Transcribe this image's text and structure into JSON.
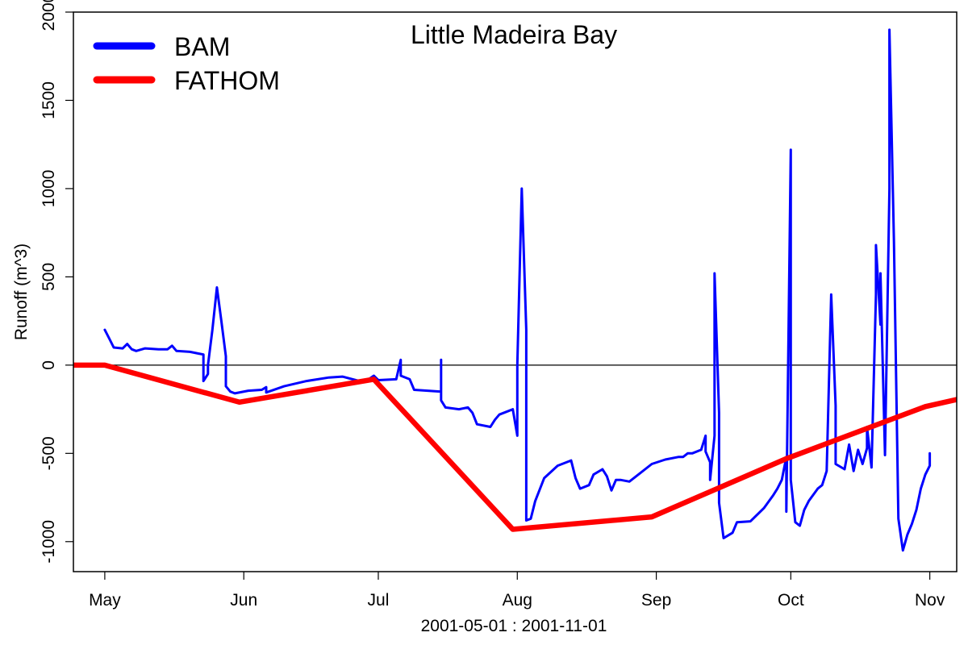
{
  "chart_data": {
    "type": "line",
    "title": "Little Madeira Bay",
    "xlabel": "2001-05-01 : 2001-11-01",
    "ylabel": "Runoff (m^3)",
    "xlim": [
      "2001-04-24",
      "2001-11-07"
    ],
    "ylim": [
      -1170,
      2000
    ],
    "x_ticks": [
      {
        "date": "2001-05-01",
        "label": "May"
      },
      {
        "date": "2001-06-01",
        "label": "Jun"
      },
      {
        "date": "2001-07-01",
        "label": "Jul"
      },
      {
        "date": "2001-08-01",
        "label": "Aug"
      },
      {
        "date": "2001-09-01",
        "label": "Sep"
      },
      {
        "date": "2001-10-01",
        "label": "Oct"
      },
      {
        "date": "2001-11-01",
        "label": "Nov"
      }
    ],
    "y_ticks": [
      -1000,
      -500,
      0,
      500,
      1000,
      1500,
      2000
    ],
    "y_tick_labels": [
      "-1000",
      "-500",
      "0",
      "500",
      "1000",
      "1500",
      "2000"
    ],
    "reference_line": 0,
    "grid": false,
    "legend_position": "top-left",
    "series": [
      {
        "name": "BAM",
        "color": "#0000ff",
        "points": [
          [
            "2001-05-01",
            200
          ],
          [
            "2001-05-02",
            150
          ],
          [
            "2001-05-03",
            100
          ],
          [
            "2001-05-05",
            95
          ],
          [
            "2001-05-06",
            120
          ],
          [
            "2001-05-07",
            90
          ],
          [
            "2001-05-08",
            80
          ],
          [
            "2001-05-10",
            95
          ],
          [
            "2001-05-13",
            90
          ],
          [
            "2001-05-15",
            90
          ],
          [
            "2001-05-16",
            110
          ],
          [
            "2001-05-17",
            80
          ],
          [
            "2001-05-20",
            75
          ],
          [
            "2001-05-22",
            65
          ],
          [
            "2001-05-23",
            60
          ],
          [
            "2001-05-23",
            -90
          ],
          [
            "2001-05-24",
            -50
          ],
          [
            "2001-05-24",
            0
          ],
          [
            "2001-05-25",
            200
          ],
          [
            "2001-05-26",
            440
          ],
          [
            "2001-05-27",
            250
          ],
          [
            "2001-05-28",
            50
          ],
          [
            "2001-05-28",
            -120
          ],
          [
            "2001-05-29",
            -150
          ],
          [
            "2001-05-30",
            -160
          ],
          [
            "2001-06-02",
            -145
          ],
          [
            "2001-06-05",
            -140
          ],
          [
            "2001-06-06",
            -125
          ],
          [
            "2001-06-06",
            -155
          ],
          [
            "2001-06-10",
            -120
          ],
          [
            "2001-06-15",
            -90
          ],
          [
            "2001-06-20",
            -70
          ],
          [
            "2001-06-23",
            -65
          ],
          [
            "2001-06-26",
            -85
          ],
          [
            "2001-06-28",
            -95
          ],
          [
            "2001-06-30",
            -60
          ],
          [
            "2001-07-01",
            -85
          ],
          [
            "2001-07-05",
            -80
          ],
          [
            "2001-07-06",
            30
          ],
          [
            "2001-07-06",
            -60
          ],
          [
            "2001-07-08",
            -80
          ],
          [
            "2001-07-09",
            -140
          ],
          [
            "2001-07-12",
            -145
          ],
          [
            "2001-07-15",
            -150
          ],
          [
            "2001-07-15",
            30
          ],
          [
            "2001-07-15",
            -200
          ],
          [
            "2001-07-16",
            -240
          ],
          [
            "2001-07-19",
            -250
          ],
          [
            "2001-07-21",
            -240
          ],
          [
            "2001-07-22",
            -270
          ],
          [
            "2001-07-23",
            -335
          ],
          [
            "2001-07-26",
            -350
          ],
          [
            "2001-07-27",
            -310
          ],
          [
            "2001-07-28",
            -280
          ],
          [
            "2001-07-30",
            -260
          ],
          [
            "2001-07-31",
            -250
          ],
          [
            "2001-08-01",
            -400
          ],
          [
            "2001-08-01",
            0
          ],
          [
            "2001-08-02",
            1000
          ],
          [
            "2001-08-03",
            200
          ],
          [
            "2001-08-03",
            -880
          ],
          [
            "2001-08-04",
            -870
          ],
          [
            "2001-08-05",
            -770
          ],
          [
            "2001-08-07",
            -640
          ],
          [
            "2001-08-10",
            -570
          ],
          [
            "2001-08-13",
            -540
          ],
          [
            "2001-08-14",
            -640
          ],
          [
            "2001-08-15",
            -700
          ],
          [
            "2001-08-17",
            -680
          ],
          [
            "2001-08-18",
            -620
          ],
          [
            "2001-08-20",
            -590
          ],
          [
            "2001-08-21",
            -630
          ],
          [
            "2001-08-22",
            -710
          ],
          [
            "2001-08-23",
            -650
          ],
          [
            "2001-08-24",
            -650
          ],
          [
            "2001-08-26",
            -660
          ],
          [
            "2001-08-28",
            -620
          ],
          [
            "2001-08-31",
            -560
          ],
          [
            "2001-09-03",
            -535
          ],
          [
            "2001-09-06",
            -520
          ],
          [
            "2001-09-07",
            -520
          ],
          [
            "2001-09-08",
            -500
          ],
          [
            "2001-09-09",
            -500
          ],
          [
            "2001-09-11",
            -480
          ],
          [
            "2001-09-12",
            -400
          ],
          [
            "2001-09-12",
            -490
          ],
          [
            "2001-09-13",
            -550
          ],
          [
            "2001-09-13",
            -650
          ],
          [
            "2001-09-14",
            -400
          ],
          [
            "2001-09-14",
            520
          ],
          [
            "2001-09-15",
            -270
          ],
          [
            "2001-09-15",
            -780
          ],
          [
            "2001-09-16",
            -980
          ],
          [
            "2001-09-18",
            -950
          ],
          [
            "2001-09-19",
            -890
          ],
          [
            "2001-09-22",
            -885
          ],
          [
            "2001-09-23",
            -860
          ],
          [
            "2001-09-25",
            -810
          ],
          [
            "2001-09-27",
            -740
          ],
          [
            "2001-09-28",
            -700
          ],
          [
            "2001-09-29",
            -650
          ],
          [
            "2001-09-30",
            -520
          ],
          [
            "2001-09-30",
            -830
          ],
          [
            "2001-10-01",
            1220
          ],
          [
            "2001-10-01",
            -650
          ],
          [
            "2001-10-02",
            -890
          ],
          [
            "2001-10-03",
            -910
          ],
          [
            "2001-10-04",
            -820
          ],
          [
            "2001-10-05",
            -770
          ],
          [
            "2001-10-07",
            -700
          ],
          [
            "2001-10-08",
            -680
          ],
          [
            "2001-10-09",
            -600
          ],
          [
            "2001-10-10",
            400
          ],
          [
            "2001-10-11",
            -230
          ],
          [
            "2001-10-11",
            -560
          ],
          [
            "2001-10-13",
            -590
          ],
          [
            "2001-10-14",
            -450
          ],
          [
            "2001-10-15",
            -600
          ],
          [
            "2001-10-16",
            -480
          ],
          [
            "2001-10-17",
            -560
          ],
          [
            "2001-10-18",
            -470
          ],
          [
            "2001-10-18",
            -350
          ],
          [
            "2001-10-19",
            -580
          ],
          [
            "2001-10-20",
            400
          ],
          [
            "2001-10-20",
            680
          ],
          [
            "2001-10-21",
            230
          ],
          [
            "2001-10-21",
            520
          ],
          [
            "2001-10-22",
            -510
          ],
          [
            "2001-10-23",
            1000
          ],
          [
            "2001-10-23",
            1900
          ],
          [
            "2001-10-24",
            700
          ],
          [
            "2001-10-25",
            -870
          ],
          [
            "2001-10-26",
            -1050
          ],
          [
            "2001-10-27",
            -960
          ],
          [
            "2001-10-28",
            -900
          ],
          [
            "2001-10-29",
            -820
          ],
          [
            "2001-10-30",
            -700
          ],
          [
            "2001-10-31",
            -620
          ],
          [
            "2001-11-01",
            -570
          ],
          [
            "2001-11-01",
            -500
          ]
        ]
      },
      {
        "name": "FATHOM",
        "color": "#ff0000",
        "points": [
          [
            "2001-04-24",
            0
          ],
          [
            "2001-05-01",
            0
          ],
          [
            "2001-05-31",
            -210
          ],
          [
            "2001-06-30",
            -80
          ],
          [
            "2001-07-31",
            -930
          ],
          [
            "2001-08-31",
            -860
          ],
          [
            "2001-09-30",
            -530
          ],
          [
            "2001-10-31",
            -235
          ],
          [
            "2001-11-07",
            -195
          ]
        ]
      }
    ]
  }
}
